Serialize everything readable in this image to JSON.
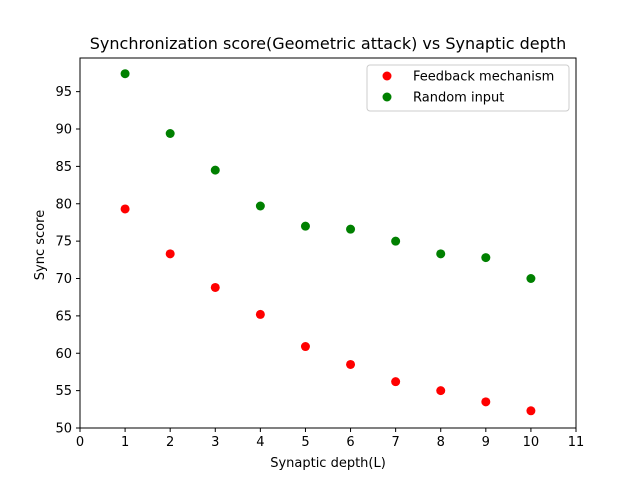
{
  "chart_data": {
    "type": "scatter",
    "title": "Synchronization score(Geometric attack) vs Synaptic depth",
    "xlabel": "Synaptic depth(L)",
    "ylabel": "Sync score",
    "xlim": [
      0,
      11
    ],
    "ylim": [
      50,
      99.5
    ],
    "xticks": [
      0,
      1,
      2,
      3,
      4,
      5,
      6,
      7,
      8,
      9,
      10,
      11
    ],
    "yticks": [
      50,
      55,
      60,
      65,
      70,
      75,
      80,
      85,
      90,
      95
    ],
    "grid": false,
    "legend_position": "top-right",
    "series": [
      {
        "name": "Feedback mechanism",
        "color": "#ff0000",
        "x": [
          1,
          2,
          3,
          4,
          5,
          6,
          7,
          8,
          9,
          10
        ],
        "y": [
          79.3,
          73.3,
          68.8,
          65.2,
          60.9,
          58.5,
          56.2,
          55.0,
          53.5,
          52.3
        ]
      },
      {
        "name": "Random input",
        "color": "#008000",
        "x": [
          1,
          2,
          3,
          4,
          5,
          6,
          7,
          8,
          9,
          10
        ],
        "y": [
          97.4,
          89.4,
          84.5,
          79.7,
          77.0,
          76.6,
          75.0,
          73.3,
          72.8,
          70.0
        ]
      }
    ]
  }
}
